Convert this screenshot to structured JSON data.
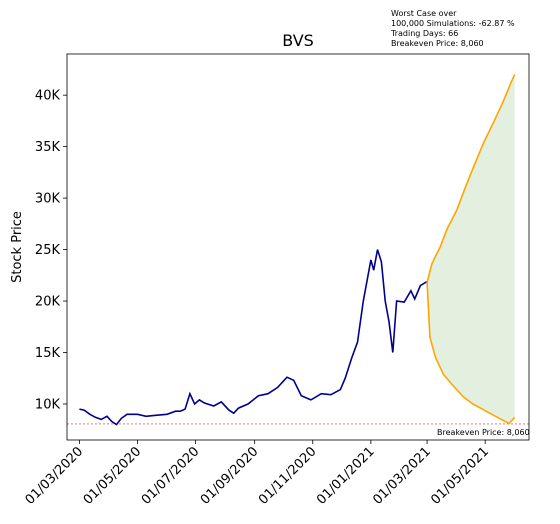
{
  "chart_data": {
    "type": "line",
    "title": "BVS",
    "xlabel": "",
    "ylabel": "Stock Price",
    "x_ticks": [
      "01/03/2020",
      "01/05/2020",
      "01/07/2020",
      "01/09/2020",
      "01/11/2020",
      "01/01/2021",
      "01/03/2021",
      "01/05/2021"
    ],
    "y_ticks": [
      "10K",
      "15K",
      "20K",
      "25K",
      "30K",
      "35K",
      "40K"
    ],
    "ylim": [
      6500,
      44000
    ],
    "grid": false,
    "legend": null,
    "annotation": {
      "lines": [
        "Worst Case over",
        "100,000 Simulations: -62.87 %",
        "Trading Days: 66",
        "Breakeven Price: 8,060"
      ]
    },
    "breakeven": {
      "value": 8060,
      "label": "Breakeven Price: 8,060",
      "color": "#d62728"
    },
    "historical": {
      "color": "#00008b",
      "points": [
        [
          "2020-03-01",
          9500
        ],
        [
          "2020-03-06",
          9400
        ],
        [
          "2020-03-12",
          9000
        ],
        [
          "2020-03-18",
          8700
        ],
        [
          "2020-03-24",
          8500
        ],
        [
          "2020-03-30",
          8800
        ],
        [
          "2020-04-04",
          8300
        ],
        [
          "2020-04-09",
          8000
        ],
        [
          "2020-04-14",
          8600
        ],
        [
          "2020-04-20",
          9000
        ],
        [
          "2020-05-01",
          9000
        ],
        [
          "2020-05-10",
          8800
        ],
        [
          "2020-05-20",
          8900
        ],
        [
          "2020-06-01",
          9000
        ],
        [
          "2020-06-10",
          9300
        ],
        [
          "2020-06-15",
          9300
        ],
        [
          "2020-06-20",
          9500
        ],
        [
          "2020-06-25",
          11000
        ],
        [
          "2020-06-30",
          10000
        ],
        [
          "2020-07-05",
          10400
        ],
        [
          "2020-07-10",
          10100
        ],
        [
          "2020-07-20",
          9800
        ],
        [
          "2020-07-28",
          10200
        ],
        [
          "2020-08-05",
          9400
        ],
        [
          "2020-08-10",
          9100
        ],
        [
          "2020-08-15",
          9600
        ],
        [
          "2020-08-25",
          10000
        ],
        [
          "2020-09-05",
          10800
        ],
        [
          "2020-09-15",
          11000
        ],
        [
          "2020-09-25",
          11600
        ],
        [
          "2020-10-05",
          12600
        ],
        [
          "2020-10-12",
          12300
        ],
        [
          "2020-10-20",
          10800
        ],
        [
          "2020-10-30",
          10400
        ],
        [
          "2020-11-10",
          11000
        ],
        [
          "2020-11-20",
          10900
        ],
        [
          "2020-11-30",
          11400
        ],
        [
          "2020-12-05",
          12500
        ],
        [
          "2020-12-12",
          14500
        ],
        [
          "2020-12-18",
          16000
        ],
        [
          "2020-12-24",
          20000
        ],
        [
          "2021-01-01",
          24000
        ],
        [
          "2021-01-04",
          23000
        ],
        [
          "2021-01-08",
          25000
        ],
        [
          "2021-01-12",
          23800
        ],
        [
          "2021-01-16",
          20000
        ],
        [
          "2021-01-20",
          18000
        ],
        [
          "2021-01-24",
          15000
        ],
        [
          "2021-01-28",
          20000
        ],
        [
          "2021-02-05",
          19900
        ],
        [
          "2021-02-12",
          21000
        ],
        [
          "2021-02-16",
          20200
        ],
        [
          "2021-02-22",
          21500
        ],
        [
          "2021-03-01",
          21900
        ]
      ]
    },
    "simulation": {
      "color": "#ffa500",
      "fill_color": "#e3f0e0",
      "upper": [
        [
          "2021-03-01",
          21800
        ],
        [
          "2021-03-06",
          23600
        ],
        [
          "2021-03-15",
          25300
        ],
        [
          "2021-03-22",
          27000
        ],
        [
          "2021-04-01",
          28800
        ],
        [
          "2021-04-10",
          31000
        ],
        [
          "2021-04-20",
          33300
        ],
        [
          "2021-04-30",
          35500
        ],
        [
          "2021-05-10",
          37400
        ],
        [
          "2021-05-20",
          39400
        ],
        [
          "2021-05-28",
          41200
        ],
        [
          "2021-06-01",
          42000
        ]
      ],
      "lower": [
        [
          "2021-03-01",
          21800
        ],
        [
          "2021-03-04",
          16500
        ],
        [
          "2021-03-10",
          14500
        ],
        [
          "2021-03-18",
          12900
        ],
        [
          "2021-03-28",
          11800
        ],
        [
          "2021-04-08",
          10700
        ],
        [
          "2021-04-18",
          10000
        ],
        [
          "2021-04-28",
          9500
        ],
        [
          "2021-05-08",
          9000
        ],
        [
          "2021-05-18",
          8500
        ],
        [
          "2021-05-26",
          8100
        ],
        [
          "2021-06-01",
          8700
        ]
      ]
    }
  }
}
